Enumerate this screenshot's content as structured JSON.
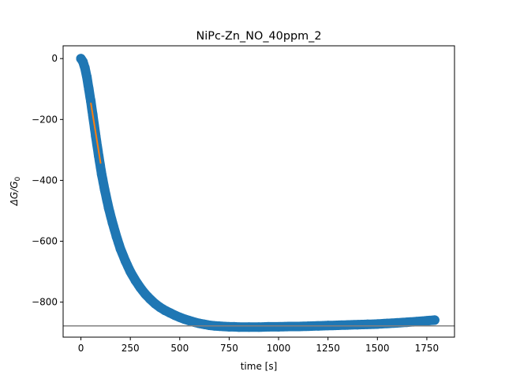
{
  "chart_data": {
    "type": "scatter",
    "title": "NiPc-Zn_NO_40ppm_2",
    "xlabel": "time [s]",
    "ylabel_main": "ΔG/G",
    "ylabel_sub": "0",
    "xlim": [
      -90,
      1890
    ],
    "ylim": [
      -915,
      42
    ],
    "xticks": [
      0,
      250,
      500,
      750,
      1000,
      1250,
      1500,
      1750
    ],
    "yticks": [
      0,
      -200,
      -400,
      -600,
      -800
    ],
    "xtick_labels": [
      "0",
      "250",
      "500",
      "750",
      "1000",
      "1250",
      "1500",
      "1750"
    ],
    "ytick_labels": [
      "0",
      "−200",
      "−400",
      "−600",
      "−800"
    ],
    "grid": false,
    "series": [
      {
        "kind": "scatter",
        "color": "#1f77b4",
        "x": [
          0,
          10,
          20,
          30,
          40,
          50,
          60,
          75,
          90,
          105,
          120,
          140,
          160,
          180,
          200,
          225,
          250,
          275,
          300,
          325,
          350,
          375,
          400,
          425,
          450,
          475,
          500,
          525,
          550,
          575,
          600,
          625,
          650,
          675,
          700,
          725,
          750,
          775,
          800,
          850,
          900,
          950,
          1000,
          1050,
          1100,
          1150,
          1200,
          1250,
          1300,
          1350,
          1400,
          1450,
          1500,
          1550,
          1600,
          1650,
          1700,
          1750,
          1790
        ],
        "y": [
          0,
          -10,
          -30,
          -60,
          -100,
          -140,
          -185,
          -255,
          -320,
          -380,
          -430,
          -490,
          -540,
          -585,
          -625,
          -665,
          -700,
          -728,
          -752,
          -773,
          -790,
          -805,
          -817,
          -827,
          -835,
          -843,
          -850,
          -856,
          -861,
          -866,
          -870,
          -873,
          -876,
          -878,
          -879,
          -880,
          -881,
          -881,
          -882,
          -882,
          -882,
          -881,
          -881,
          -880,
          -880,
          -879,
          -878,
          -877,
          -876,
          -875,
          -874,
          -873,
          -872,
          -870,
          -868,
          -866,
          -864,
          -861,
          -859
        ]
      },
      {
        "kind": "line",
        "color": "#ff7f0e",
        "x": [
          50,
          100
        ],
        "y": [
          -145,
          -345
        ]
      },
      {
        "kind": "hline",
        "color": "#808080",
        "y": -878
      }
    ]
  }
}
